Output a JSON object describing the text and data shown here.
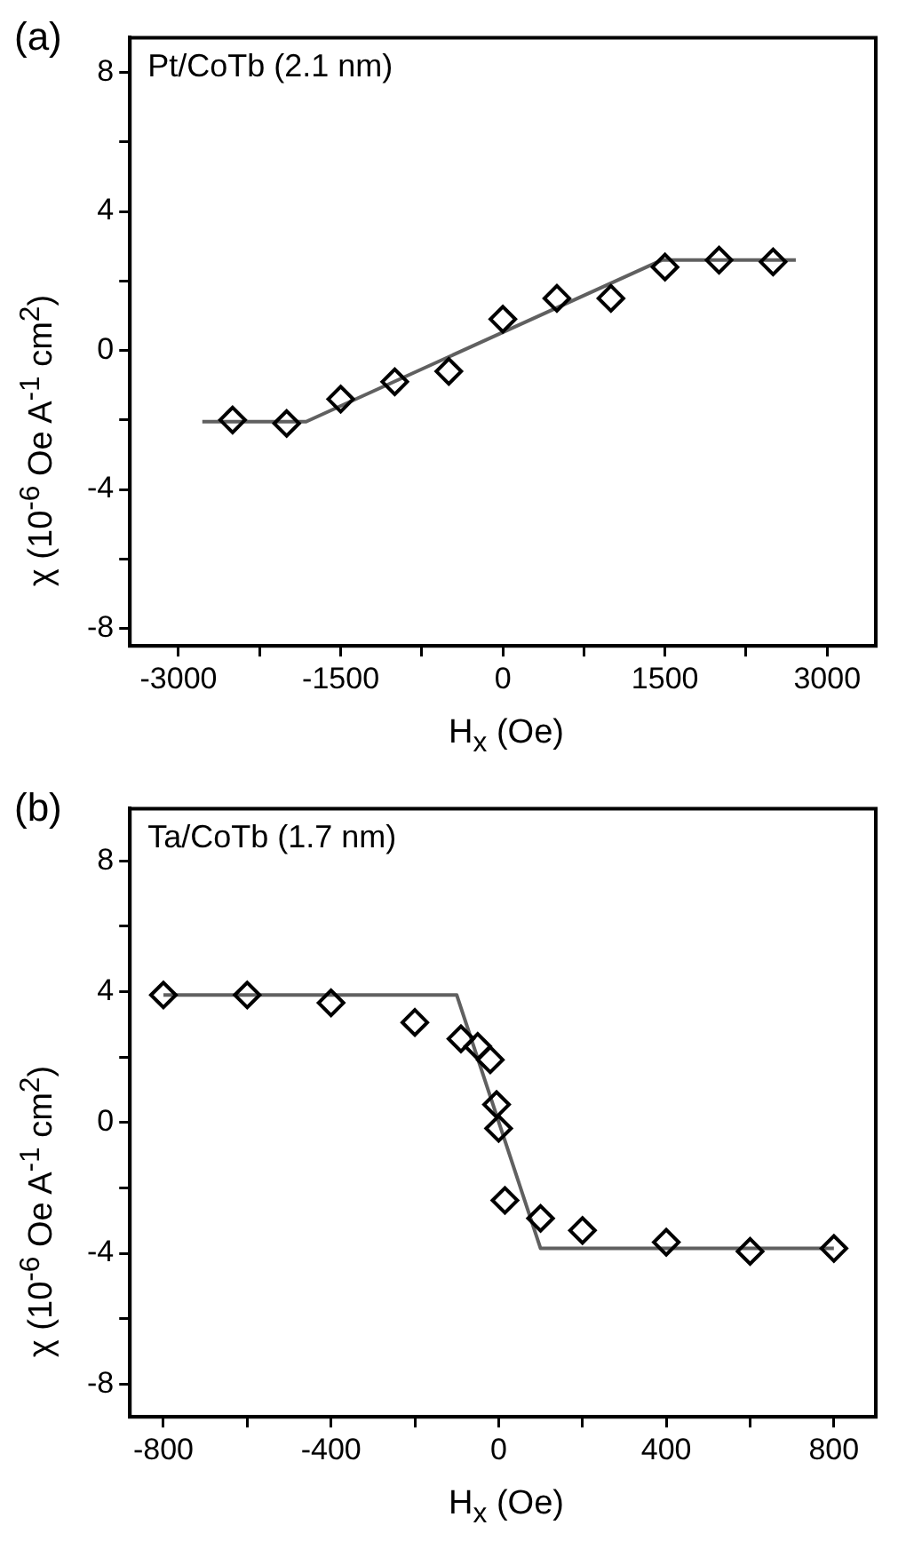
{
  "chart_data": [
    {
      "type": "scatter",
      "title": "(a)",
      "annotations": [
        "Pt/CoTb (2.1 nm)"
      ],
      "xlabel": "H$_{x}$ (Oe)",
      "ylabel": "χ (10$^{-6}$ Oe A$^{-1}$ cm$^{2}$)",
      "xlim": [
        -3450,
        3450
      ],
      "xticks": [
        -3000,
        {
          "value": -2250,
          "label": null
        },
        -1500,
        {
          "value": -750,
          "label": null
        },
        0,
        {
          "value": 750,
          "label": null
        },
        1500,
        {
          "value": 2250,
          "label": null
        },
        3000
      ],
      "ylim": [
        -8.5,
        9
      ],
      "yticks": [
        -8,
        {
          "value": -6,
          "label": null
        },
        -4,
        {
          "value": -2,
          "label": null
        },
        0,
        {
          "value": 2,
          "label": null
        },
        4,
        {
          "value": 6,
          "label": null
        },
        8
      ],
      "series": [
        {
          "marker": "diamond",
          "color": "#000000",
          "x": [
            -2500,
            -2000,
            -1500,
            -1000,
            -500,
            0,
            500,
            1000,
            1500,
            2000,
            2500
          ],
          "values": [
            -2.0,
            -2.1,
            -1.4,
            -0.9,
            -0.6,
            0.9,
            1.5,
            1.5,
            2.4,
            2.6,
            2.55
          ]
        },
        {
          "type": "line",
          "marker": "none",
          "color": "#606060",
          "x": [
            -2780,
            -1820,
            1470,
            2710
          ],
          "values": [
            -2.05,
            -2.05,
            2.6,
            2.6
          ]
        }
      ]
    },
    {
      "type": "scatter",
      "title": "(b)",
      "annotations": [
        "Ta/CoTb (1.7 nm)"
      ],
      "xlabel": "H$_{x}$ (Oe)",
      "ylabel": "χ (10$^{-6}$ Oe A$^{-1}$ cm$^{2}$)",
      "xlim": [
        -880,
        900
      ],
      "xticks": [
        -800,
        {
          "value": -600,
          "label": null
        },
        -400,
        {
          "value": -200,
          "label": null
        },
        0,
        {
          "value": 200,
          "label": null
        },
        400,
        {
          "value": 600,
          "label": null
        },
        800
      ],
      "ylim": [
        -9,
        9.6
      ],
      "yticks": [
        -8,
        {
          "value": -6,
          "label": null
        },
        -4,
        {
          "value": -2,
          "label": null
        },
        0,
        {
          "value": 2,
          "label": null
        },
        4,
        {
          "value": 6,
          "label": null
        },
        8
      ],
      "series": [
        {
          "marker": "diamond",
          "color": "#000000",
          "x": [
            -800,
            -600,
            -400,
            -200,
            -90,
            -50,
            -20,
            -5,
            0,
            15,
            100,
            200,
            400,
            600,
            800
          ],
          "values": [
            3.9,
            3.9,
            3.66,
            3.06,
            2.56,
            2.33,
            1.92,
            0.55,
            -0.18,
            -2.38,
            -2.93,
            -3.3,
            -3.66,
            -3.94,
            -3.85
          ]
        },
        {
          "type": "line",
          "marker": "none",
          "color": "#606060",
          "x": [
            -800,
            -100,
            100,
            800
          ],
          "values": [
            3.9,
            3.9,
            -3.85,
            -3.85
          ]
        }
      ]
    }
  ]
}
